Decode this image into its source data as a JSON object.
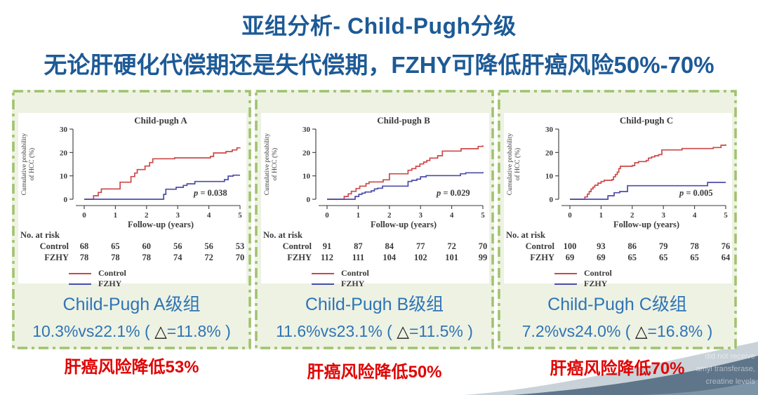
{
  "slide": {
    "title": "亚组分析- Child-Pugh分级",
    "subtitle": "无论肝硬化代偿期还是失代偿期，FZHY可降低肝癌风险50%-70%",
    "colors": {
      "title_blue": "#1d5a96",
      "band_text_blue": "#2e75b6",
      "panel_green_bg": "#eef2e3",
      "panel_border_green": "#9fc36d",
      "risk_note_red": "#e00404",
      "control_red": "#cc4848",
      "fzhy_blue": "#4c4caa",
      "swoosh_light": "#c9d2d9",
      "swoosh_dark": "#5f7589"
    },
    "watermark_fragments": [
      "did not receive",
      "amyl transferase,",
      "creatine levels"
    ]
  },
  "panels": [
    {
      "band_title": "Child-Pugh A级组",
      "stats_prefix": "10.3%vs22.1% ( ",
      "delta": "△",
      "stats_suffix": "=11.8% )",
      "risk_note": "肝癌风险降低53%"
    },
    {
      "band_title": "Child-Pugh B级组",
      "stats_prefix": "11.6%vs23.1% ( ",
      "delta": "△",
      "stats_suffix": "=11.5% )",
      "risk_note": "肝癌风险降低50%"
    },
    {
      "band_title": "Child-Pugh C级组",
      "stats_prefix": "7.2%vs24.0% ( ",
      "delta": "△",
      "stats_suffix": "=16.8% )",
      "risk_note": "肝癌风险降低70%"
    }
  ],
  "chart_data": [
    {
      "type": "line",
      "title": "Child-pugh A",
      "xlabel": "Follow-up (years)",
      "ylabel_lines": [
        "Cumulative probability",
        "of HCC (%)"
      ],
      "xlim": [
        0,
        5
      ],
      "ylim": [
        0,
        30
      ],
      "xticks": [
        0,
        1,
        2,
        3,
        4,
        5
      ],
      "yticks": [
        0,
        10,
        20,
        30
      ],
      "p_label": "p = 0.038",
      "series": [
        {
          "name": "Control",
          "color": "#cc4848",
          "step": [
            [
              0,
              0
            ],
            [
              0.3,
              1.5
            ],
            [
              0.45,
              2.9
            ],
            [
              0.55,
              4.4
            ],
            [
              1.15,
              7.3
            ],
            [
              1.5,
              9.7
            ],
            [
              1.62,
              11.2
            ],
            [
              1.7,
              12.7
            ],
            [
              1.95,
              14.2
            ],
            [
              2.1,
              15.7
            ],
            [
              2.2,
              17.3
            ],
            [
              2.9,
              17.7
            ],
            [
              4.05,
              18.3
            ],
            [
              4.15,
              19.8
            ],
            [
              4.55,
              20.4
            ],
            [
              4.75,
              21.1
            ],
            [
              4.9,
              22.0
            ],
            [
              5,
              22.1
            ]
          ]
        },
        {
          "name": "FZHY",
          "color": "#4c4caa",
          "step": [
            [
              0,
              0
            ],
            [
              2.55,
              2.1
            ],
            [
              2.62,
              4.3
            ],
            [
              2.95,
              5.1
            ],
            [
              3.18,
              5.9
            ],
            [
              3.3,
              6.6
            ],
            [
              3.55,
              7.6
            ],
            [
              4.5,
              8.4
            ],
            [
              4.62,
              9.9
            ],
            [
              4.78,
              10.3
            ],
            [
              5,
              10.3
            ]
          ]
        }
      ],
      "no_at_risk": {
        "label": "No. at risk",
        "rows": [
          {
            "name": "Control",
            "values": [
              68,
              65,
              60,
              56,
              56,
              53
            ]
          },
          {
            "name": "FZHY",
            "values": [
              78,
              78,
              78,
              74,
              72,
              70
            ]
          }
        ]
      }
    },
    {
      "type": "line",
      "title": "Child-pugh B",
      "xlabel": "Follow-up (years)",
      "ylabel_lines": [
        "Cumulative probability",
        "of HCC (%)"
      ],
      "xlim": [
        0,
        5
      ],
      "ylim": [
        0,
        30
      ],
      "xticks": [
        0,
        1,
        2,
        3,
        4,
        5
      ],
      "yticks": [
        0,
        10,
        20,
        30
      ],
      "p_label": "p = 0.029",
      "series": [
        {
          "name": "Control",
          "color": "#cc4848",
          "step": [
            [
              0,
              0
            ],
            [
              0.55,
              1.2
            ],
            [
              0.68,
              2.3
            ],
            [
              0.78,
              3.4
            ],
            [
              0.93,
              4.6
            ],
            [
              1.05,
              5.6
            ],
            [
              1.25,
              6.7
            ],
            [
              1.35,
              7.4
            ],
            [
              1.8,
              8.3
            ],
            [
              2.0,
              10.9
            ],
            [
              2.6,
              12.4
            ],
            [
              2.72,
              13.1
            ],
            [
              2.85,
              14.1
            ],
            [
              2.98,
              15.1
            ],
            [
              3.1,
              15.9
            ],
            [
              3.2,
              16.6
            ],
            [
              3.3,
              17.6
            ],
            [
              3.55,
              18.6
            ],
            [
              3.7,
              20.6
            ],
            [
              4.3,
              21.6
            ],
            [
              4.85,
              22.6
            ],
            [
              5,
              23.0
            ]
          ]
        },
        {
          "name": "FZHY",
          "color": "#4c4caa",
          "step": [
            [
              0,
              0
            ],
            [
              0.9,
              1.2
            ],
            [
              1.02,
              2.1
            ],
            [
              1.12,
              2.6
            ],
            [
              1.22,
              3.1
            ],
            [
              1.42,
              3.6
            ],
            [
              1.52,
              4.4
            ],
            [
              1.62,
              4.7
            ],
            [
              1.78,
              5.6
            ],
            [
              2.6,
              7.6
            ],
            [
              2.72,
              8.1
            ],
            [
              2.88,
              8.6
            ],
            [
              3.0,
              9.6
            ],
            [
              3.18,
              10.1
            ],
            [
              4.28,
              10.9
            ],
            [
              4.45,
              11.3
            ],
            [
              5,
              11.6
            ]
          ]
        }
      ],
      "no_at_risk": {
        "label": "No. at risk",
        "rows": [
          {
            "name": "Control",
            "values": [
              91,
              87,
              84,
              77,
              72,
              70
            ]
          },
          {
            "name": "FZHY",
            "values": [
              112,
              111,
              104,
              102,
              101,
              99
            ]
          }
        ]
      }
    },
    {
      "type": "line",
      "title": "Child-pugh C",
      "xlabel": "Follow-up (years)",
      "ylabel_lines": [
        "Cumulative probability",
        "of HCC (%)"
      ],
      "xlim": [
        0,
        5
      ],
      "ylim": [
        0,
        30
      ],
      "xticks": [
        0,
        1,
        2,
        3,
        4,
        5
      ],
      "yticks": [
        0,
        10,
        20,
        30
      ],
      "p_label": "p = 0.005",
      "series": [
        {
          "name": "Control",
          "color": "#cc4848",
          "step": [
            [
              0,
              0
            ],
            [
              0.48,
              1.0
            ],
            [
              0.56,
              2.2
            ],
            [
              0.62,
              3.3
            ],
            [
              0.68,
              4.4
            ],
            [
              0.74,
              5.2
            ],
            [
              0.8,
              6.0
            ],
            [
              0.9,
              6.9
            ],
            [
              1.0,
              7.6
            ],
            [
              1.1,
              8.1
            ],
            [
              1.35,
              8.4
            ],
            [
              1.4,
              9.6
            ],
            [
              1.46,
              10.6
            ],
            [
              1.52,
              11.6
            ],
            [
              1.57,
              13.1
            ],
            [
              1.62,
              14.1
            ],
            [
              2.0,
              14.4
            ],
            [
              2.08,
              15.6
            ],
            [
              2.2,
              16.1
            ],
            [
              2.45,
              16.6
            ],
            [
              2.52,
              17.6
            ],
            [
              2.62,
              18.1
            ],
            [
              2.72,
              18.6
            ],
            [
              2.85,
              19.1
            ],
            [
              2.95,
              21.1
            ],
            [
              3.6,
              21.7
            ],
            [
              4.6,
              22.1
            ],
            [
              4.85,
              23.1
            ],
            [
              5,
              23.5
            ]
          ]
        },
        {
          "name": "FZHY",
          "color": "#4c4caa",
          "step": [
            [
              0,
              0
            ],
            [
              1.22,
              1.5
            ],
            [
              1.42,
              2.8
            ],
            [
              1.6,
              3.3
            ],
            [
              1.85,
              5.8
            ],
            [
              4.42,
              7.2
            ],
            [
              5,
              7.2
            ]
          ]
        }
      ],
      "no_at_risk": {
        "label": "No. at risk",
        "rows": [
          {
            "name": "Control",
            "values": [
              100,
              93,
              86,
              79,
              78,
              76
            ]
          },
          {
            "name": "FZHY",
            "values": [
              69,
              69,
              65,
              65,
              65,
              64
            ]
          }
        ]
      }
    }
  ]
}
